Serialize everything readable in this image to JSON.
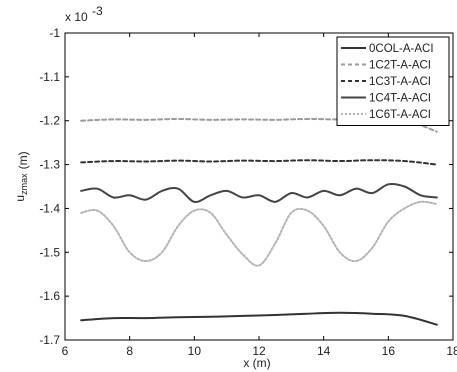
{
  "chart_data": {
    "type": "line",
    "title": "",
    "xlabel": "x (m)",
    "ylabel_main": "u",
    "ylabel_sub": "zmax",
    "ylabel_unit": "(m)",
    "y_exponent_label": "x 10",
    "y_exponent_power": "-3",
    "xlim": [
      6,
      18
    ],
    "ylim": [
      -1.7,
      -1.0
    ],
    "xticks": [
      6,
      8,
      10,
      12,
      14,
      16,
      18
    ],
    "xtick_labels": [
      "6",
      "8",
      "10",
      "12",
      "14",
      "16",
      "18"
    ],
    "yticks": [
      -1.0,
      -1.1,
      -1.2,
      -1.3,
      -1.4,
      -1.5,
      -1.6,
      -1.7
    ],
    "ytick_labels": [
      "-1",
      "-1.1",
      "-1.2",
      "-1.3",
      "-1.4",
      "-1.5",
      "-1.6",
      "-1.7"
    ],
    "grid": false,
    "legend_position": "top-right",
    "series": [
      {
        "name": "0COL-A-ACI",
        "color": "#333333",
        "dash": "",
        "width": 2,
        "x": [
          6.5,
          7.5,
          8.5,
          9.5,
          10.5,
          11.5,
          12.5,
          13.5,
          14.5,
          15.5,
          16.5,
          17.5
        ],
        "y": [
          -1.655,
          -1.65,
          -1.65,
          -1.648,
          -1.647,
          -1.645,
          -1.643,
          -1.64,
          -1.638,
          -1.64,
          -1.645,
          -1.665
        ]
      },
      {
        "name": "1C2T-A-ACI",
        "color": "#9a9a9a",
        "dash": "4,3",
        "width": 2,
        "x": [
          6.5,
          7.5,
          8.5,
          9.5,
          10.5,
          11.5,
          12.5,
          13.5,
          14.5,
          15.5,
          16.5,
          17.5
        ],
        "y": [
          -1.2,
          -1.197,
          -1.198,
          -1.196,
          -1.198,
          -1.197,
          -1.198,
          -1.196,
          -1.197,
          -1.195,
          -1.198,
          -1.225
        ]
      },
      {
        "name": "1C3T-A-ACI",
        "color": "#333333",
        "dash": "4,3",
        "width": 2,
        "x": [
          6.5,
          7.5,
          8.5,
          9.5,
          10.5,
          11.5,
          12.5,
          13.5,
          14.5,
          15.5,
          16.5,
          17.5
        ],
        "y": [
          -1.295,
          -1.292,
          -1.293,
          -1.291,
          -1.293,
          -1.291,
          -1.292,
          -1.29,
          -1.292,
          -1.29,
          -1.292,
          -1.3
        ]
      },
      {
        "name": "1C4T-A-ACI",
        "color": "#444444",
        "dash": "",
        "width": 2,
        "x": [
          6.5,
          7.0,
          7.5,
          8.0,
          8.5,
          9.0,
          9.5,
          10.0,
          10.5,
          11.0,
          11.5,
          12.0,
          12.5,
          13.0,
          13.5,
          14.0,
          14.5,
          15.0,
          15.5,
          16.0,
          16.5,
          17.0,
          17.5
        ],
        "y": [
          -1.36,
          -1.355,
          -1.375,
          -1.37,
          -1.38,
          -1.36,
          -1.355,
          -1.385,
          -1.37,
          -1.36,
          -1.375,
          -1.37,
          -1.385,
          -1.365,
          -1.375,
          -1.36,
          -1.37,
          -1.355,
          -1.365,
          -1.345,
          -1.35,
          -1.37,
          -1.375
        ]
      },
      {
        "name": "1C6T-A-ACI",
        "color": "#b4b4b4",
        "dash": "2,2",
        "width": 2,
        "x": [
          6.5,
          7.0,
          7.5,
          8.0,
          8.5,
          9.0,
          9.5,
          10.0,
          10.5,
          11.0,
          11.5,
          12.0,
          12.5,
          13.0,
          13.5,
          14.0,
          14.5,
          15.0,
          15.5,
          16.0,
          16.5,
          17.0,
          17.5
        ],
        "y": [
          -1.41,
          -1.405,
          -1.44,
          -1.5,
          -1.52,
          -1.5,
          -1.44,
          -1.405,
          -1.41,
          -1.46,
          -1.505,
          -1.53,
          -1.48,
          -1.41,
          -1.405,
          -1.44,
          -1.5,
          -1.52,
          -1.49,
          -1.43,
          -1.4,
          -1.385,
          -1.39
        ]
      }
    ]
  }
}
